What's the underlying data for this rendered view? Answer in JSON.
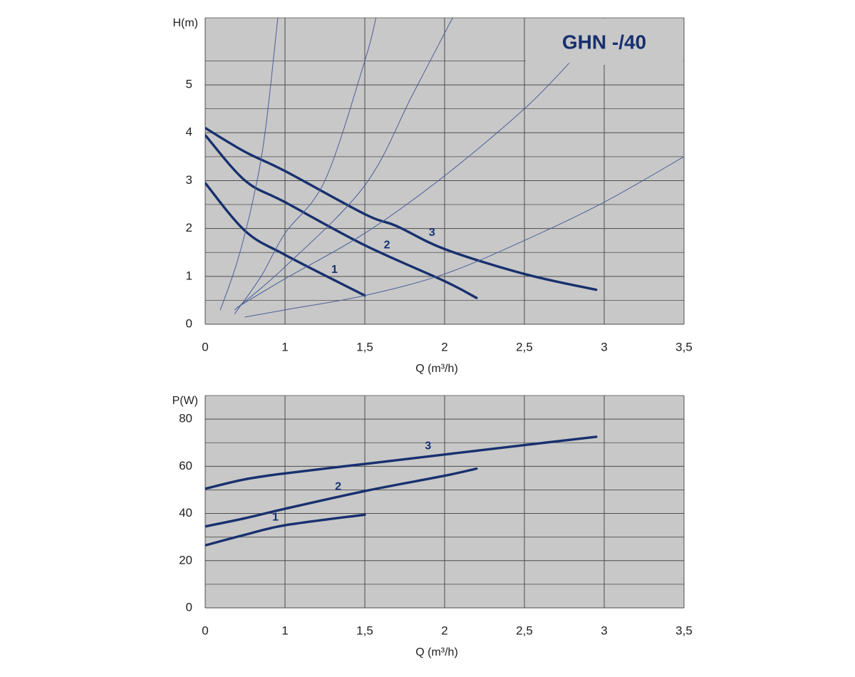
{
  "chart_data": [
    {
      "type": "line",
      "title": "GHN -/40",
      "y_label": "H(m)",
      "x_label": "Q (m³/h)",
      "xlim": [
        0,
        3.5
      ],
      "xticks": [
        0,
        1,
        {
          "value": 1.5,
          "label": "1,5"
        },
        2,
        {
          "value": 2.5,
          "label": "2,5"
        },
        3,
        {
          "value": 3.5,
          "label": "3,5"
        }
      ],
      "ylim": [
        0,
        6.4
      ],
      "yticks": [
        0,
        1,
        2,
        3,
        4,
        5
      ],
      "yminorticks": [
        0.5,
        1.5,
        2.5,
        3.5,
        4.5,
        5.5,
        6.4
      ],
      "grid": true,
      "background": "#c8c8c8",
      "series": [
        {
          "name": "1",
          "color": "#17306e",
          "x": [
            0,
            0.5,
            1,
            1.5
          ],
          "values": [
            2.95,
            1.95,
            1.45,
            0.6
          ]
        },
        {
          "name": "2",
          "color": "#17306e",
          "x": [
            0,
            0.5,
            1,
            1.5,
            2,
            2.2
          ],
          "values": [
            3.95,
            3.0,
            2.55,
            1.65,
            0.9,
            0.55
          ]
        },
        {
          "name": "3",
          "color": "#17306e",
          "x": [
            0,
            0.5,
            1,
            1.5,
            1.7,
            2,
            2.5,
            2.95
          ],
          "values": [
            4.1,
            3.6,
            3.2,
            2.3,
            2.05,
            1.57,
            1.05,
            0.72
          ]
        },
        {
          "color": "#4a5f9a",
          "x": [
            0.19,
            0.4,
            0.6,
            0.75,
            0.91
          ],
          "values": [
            0.3,
            1.3,
            2.6,
            4,
            6.4
          ]
        },
        {
          "color": "#4a5f9a",
          "x": [
            0.37,
            0.7,
            1,
            1.25,
            1.5,
            1.57
          ],
          "values": [
            0.22,
            1.0,
            1.9,
            3.0,
            5.5,
            6.4
          ]
        },
        {
          "color": "#4a5f9a",
          "x": [
            0.37,
            1,
            1.5,
            1.8,
            2.05
          ],
          "values": [
            0.3,
            1.2,
            2.9,
            4.8,
            6.4
          ]
        },
        {
          "color": "#4a5f9a",
          "x": [
            0.4,
            1,
            1.5,
            2,
            2.5,
            2.78
          ],
          "values": [
            0.35,
            0.95,
            1.9,
            3.1,
            4.5,
            5.45
          ]
        },
        {
          "color": "#4a5f9a",
          "x": [
            0.5,
            1,
            1.5,
            2,
            2.5,
            3,
            3.5
          ],
          "values": [
            0.15,
            0.3,
            0.6,
            1.05,
            1.75,
            2.55,
            3.5
          ]
        }
      ]
    },
    {
      "type": "line",
      "y_label": "P(W)",
      "x_label": "Q (m³/h)",
      "xlim": [
        0,
        3.5
      ],
      "xticks": [
        0,
        1,
        {
          "value": 1.5,
          "label": "1,5"
        },
        2,
        {
          "value": 2.5,
          "label": "2,5"
        },
        3,
        {
          "value": 3.5,
          "label": "3,5"
        }
      ],
      "ylim": [
        0,
        90
      ],
      "yticks": [
        0,
        20,
        40,
        60,
        80
      ],
      "yminorticks": [
        10,
        30,
        50,
        70,
        90
      ],
      "grid": true,
      "background": "#c8c8c8",
      "series": [
        {
          "name": "1",
          "color": "#17306e",
          "x": [
            0,
            0.5,
            1,
            1.5
          ],
          "values": [
            26.5,
            31,
            35,
            39.5
          ]
        },
        {
          "name": "2",
          "color": "#17306e",
          "x": [
            0,
            0.5,
            1,
            1.5,
            2,
            2.2
          ],
          "values": [
            34.5,
            38,
            42,
            49.5,
            56,
            59
          ]
        },
        {
          "name": "3",
          "color": "#17306e",
          "x": [
            0,
            0.5,
            1,
            1.5,
            2,
            2.5,
            2.95
          ],
          "values": [
            50.5,
            54.5,
            57,
            61,
            65,
            69,
            72.5
          ]
        }
      ]
    }
  ]
}
